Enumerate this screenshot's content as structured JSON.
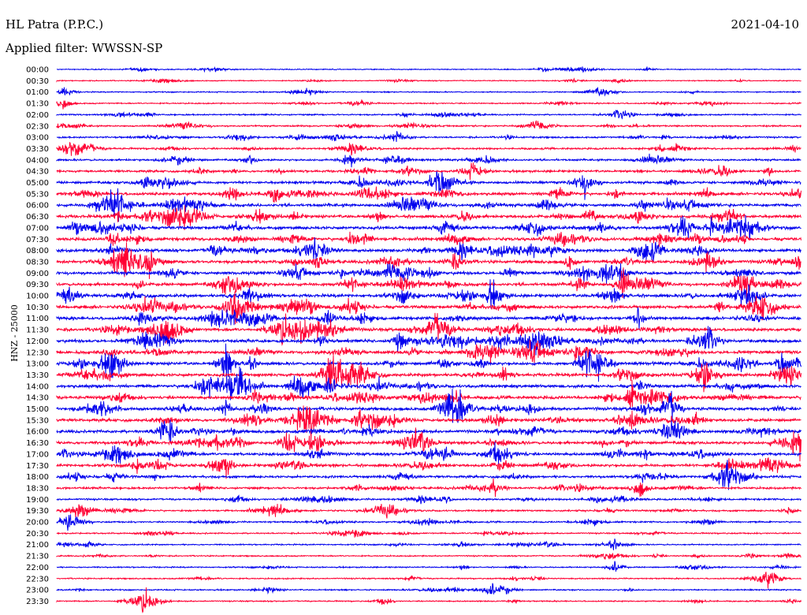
{
  "header": {
    "station": "HL Patra (P.P.C.)",
    "date": "2021-04-10",
    "filter": "Applied filter: WWSSN-SP"
  },
  "channel_label": "HNZ - 25000",
  "colors": {
    "odd_trace": "#0000ee",
    "even_trace": "#ff0033"
  },
  "chart_data": {
    "type": "line",
    "title": "HL Patra (P.P.C.)",
    "subtitle": "Applied filter: WWSSN-SP",
    "ylabel": "HNZ - 25000",
    "xlabel": "",
    "grid": false,
    "legend": "none",
    "series": [
      {
        "label": "00:00",
        "activity": 0.2
      },
      {
        "label": "00:30",
        "activity": 0.2
      },
      {
        "label": "01:00",
        "activity": 0.25
      },
      {
        "label": "01:30",
        "activity": 0.3
      },
      {
        "label": "02:00",
        "activity": 0.35
      },
      {
        "label": "02:30",
        "activity": 0.4
      },
      {
        "label": "03:00",
        "activity": 0.45
      },
      {
        "label": "03:30",
        "activity": 0.5
      },
      {
        "label": "04:00",
        "activity": 0.55
      },
      {
        "label": "04:30",
        "activity": 0.65
      },
      {
        "label": "05:00",
        "activity": 0.75
      },
      {
        "label": "05:30",
        "activity": 0.85
      },
      {
        "label": "06:00",
        "activity": 0.9
      },
      {
        "label": "06:30",
        "activity": 0.95
      },
      {
        "label": "07:00",
        "activity": 0.95
      },
      {
        "label": "07:30",
        "activity": 0.95
      },
      {
        "label": "08:00",
        "activity": 0.95
      },
      {
        "label": "08:30",
        "activity": 0.95
      },
      {
        "label": "09:00",
        "activity": 0.95
      },
      {
        "label": "09:30",
        "activity": 0.95
      },
      {
        "label": "10:00",
        "activity": 0.95
      },
      {
        "label": "10:30",
        "activity": 0.95
      },
      {
        "label": "11:00",
        "activity": 0.95
      },
      {
        "label": "11:30",
        "activity": 0.95
      },
      {
        "label": "12:00",
        "activity": 0.95
      },
      {
        "label": "12:30",
        "activity": 0.95
      },
      {
        "label": "13:00",
        "activity": 0.95
      },
      {
        "label": "13:30",
        "activity": 0.95
      },
      {
        "label": "14:00",
        "activity": 0.95
      },
      {
        "label": "14:30",
        "activity": 0.95
      },
      {
        "label": "15:00",
        "activity": 0.95
      },
      {
        "label": "15:30",
        "activity": 0.9
      },
      {
        "label": "16:00",
        "activity": 0.9
      },
      {
        "label": "16:30",
        "activity": 0.9
      },
      {
        "label": "17:00",
        "activity": 0.85
      },
      {
        "label": "17:30",
        "activity": 0.85
      },
      {
        "label": "18:00",
        "activity": 0.7
      },
      {
        "label": "18:30",
        "activity": 0.6
      },
      {
        "label": "19:00",
        "activity": 0.5
      },
      {
        "label": "19:30",
        "activity": 0.45
      },
      {
        "label": "20:00",
        "activity": 0.4
      },
      {
        "label": "20:30",
        "activity": 0.35
      },
      {
        "label": "21:00",
        "activity": 0.3
      },
      {
        "label": "21:30",
        "activity": 0.3
      },
      {
        "label": "22:00",
        "activity": 0.3
      },
      {
        "label": "22:30",
        "activity": 0.3
      },
      {
        "label": "23:00",
        "activity": 0.3
      },
      {
        "label": "23:30",
        "activity": 0.3
      }
    ]
  }
}
